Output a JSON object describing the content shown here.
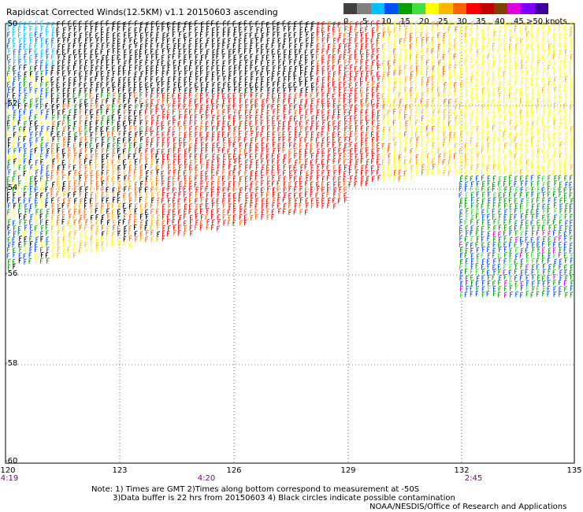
{
  "title": "Rapidscat Corrected Winds(12.5KM) v1.1 20150603 ascending",
  "legend": {
    "colors": [
      "#404040",
      "#808080",
      "#00c0ff",
      "#0050ff",
      "#00a000",
      "#40e040",
      "#ffff00",
      "#ffb400",
      "#ff6000",
      "#ff0000",
      "#c00000",
      "#804000",
      "#e000e0",
      "#8000ff",
      "#4000a0"
    ],
    "labels": [
      "0",
      "5",
      "10",
      "15",
      "20",
      "25",
      "30",
      "35",
      "40",
      "45",
      ">50 knots"
    ]
  },
  "axes": {
    "lat_labels": [
      "-50",
      "-52",
      "-54",
      "-56",
      "-58",
      "-60"
    ],
    "lon_labels": [
      "120",
      "123",
      "126",
      "129",
      "132",
      "135"
    ]
  },
  "time_labels": [
    "4:19",
    "4:20",
    "2:45"
  ],
  "notes": {
    "line1": "Note: 1) Times are GMT 2)Times along bottom correspond to measurement at -50S",
    "line2": "3)Data buffer is 22 hrs from 20150603 4) Black circles indicate possible contamination",
    "credit": "NOAA/NESDIS/Office of Research and Applications"
  },
  "colors": {
    "grid": "#000000",
    "time_text": "#800080"
  }
}
